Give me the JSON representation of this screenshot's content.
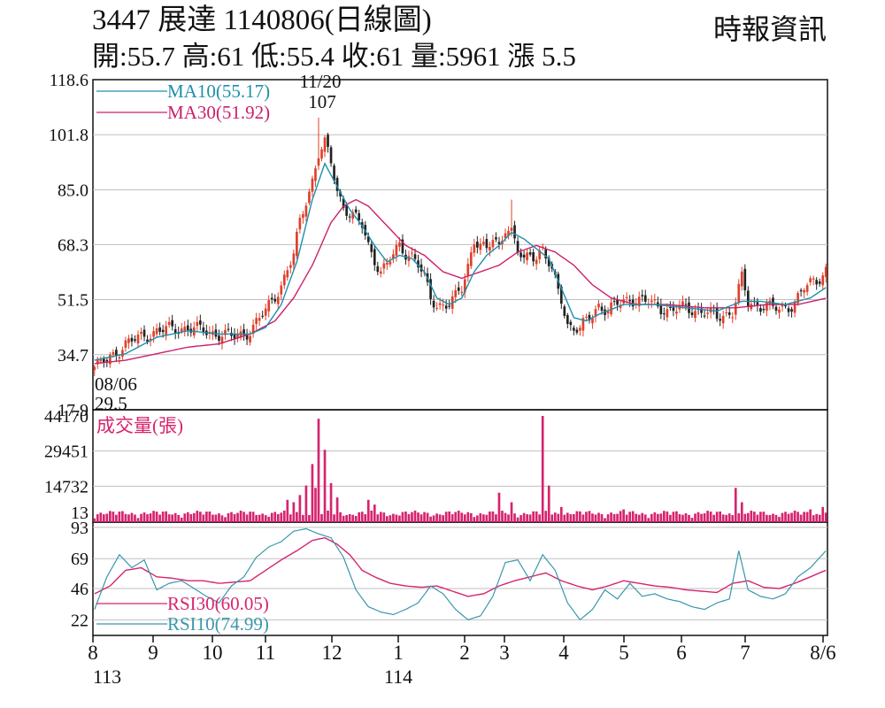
{
  "header": {
    "title": "3447  展達 1140806(日線圖)",
    "ohlc_line": "開:55.7 高:61 低:55.4 收:61 量:5961 漲 5.5",
    "source": "時報資訊"
  },
  "colors": {
    "ma10": "#1e8fad",
    "ma30": "#cc1f6a",
    "volume": "#d6246e",
    "rsi30": "#d6246e",
    "rsi10": "#3a97ad",
    "up": "#e0402a",
    "down": "#222222",
    "grid": "#bfbfbf"
  },
  "chart_data": [
    {
      "type": "candlestick",
      "panel": "price",
      "y_ticks": [
        "118.6",
        "101.8",
        "85.0",
        "68.3",
        "51.5",
        "34.7",
        "17.9"
      ],
      "ylim": [
        17.9,
        118.6
      ],
      "grid": true,
      "legend": [
        {
          "label": "MA10(55.17)",
          "color": "#1e8fad"
        },
        {
          "label": "MA30(51.92)",
          "color": "#cc1f6a"
        }
      ],
      "annotations": [
        {
          "label": "11/20",
          "value": "107"
        },
        {
          "label": "08/06",
          "value": "29.5"
        }
      ],
      "x_months": [
        "8",
        "9",
        "10",
        "11",
        "12",
        "1",
        "2",
        "3",
        "4",
        "5",
        "6",
        "7",
        "8/6"
      ],
      "x_years": [
        "113",
        "114"
      ],
      "close_anchors": [
        [
          0,
          31
        ],
        [
          4,
          33
        ],
        [
          10,
          38
        ],
        [
          20,
          42
        ],
        [
          30,
          43
        ],
        [
          40,
          41
        ],
        [
          45,
          40
        ],
        [
          50,
          42
        ],
        [
          55,
          48
        ],
        [
          60,
          56
        ],
        [
          64,
          65
        ],
        [
          66,
          75
        ],
        [
          68,
          82
        ],
        [
          70,
          88
        ],
        [
          72,
          96
        ],
        [
          74,
          99
        ],
        [
          76,
          93
        ],
        [
          78,
          85
        ],
        [
          80,
          80
        ],
        [
          82,
          78
        ],
        [
          84,
          76
        ],
        [
          86,
          74
        ],
        [
          88,
          68
        ],
        [
          90,
          64
        ],
        [
          92,
          60
        ],
        [
          94,
          62
        ],
        [
          96,
          65
        ],
        [
          98,
          68
        ],
        [
          100,
          66
        ],
        [
          102,
          65
        ],
        [
          104,
          62
        ],
        [
          106,
          58
        ],
        [
          108,
          52
        ],
        [
          110,
          50
        ],
        [
          112,
          50
        ],
        [
          114,
          50
        ],
        [
          116,
          52
        ],
        [
          118,
          55
        ],
        [
          120,
          62
        ],
        [
          122,
          70
        ],
        [
          124,
          68
        ],
        [
          126,
          66
        ],
        [
          128,
          70
        ],
        [
          130,
          68
        ],
        [
          132,
          74
        ],
        [
          134,
          72
        ],
        [
          136,
          66
        ],
        [
          138,
          63
        ],
        [
          140,
          66
        ],
        [
          142,
          65
        ],
        [
          144,
          67
        ],
        [
          146,
          62
        ],
        [
          148,
          57
        ],
        [
          150,
          52
        ],
        [
          152,
          44
        ],
        [
          154,
          43
        ],
        [
          156,
          42
        ],
        [
          158,
          45
        ],
        [
          160,
          47
        ],
        [
          162,
          50
        ],
        [
          165,
          48
        ],
        [
          168,
          50
        ],
        [
          172,
          52
        ],
        [
          176,
          51
        ],
        [
          180,
          50
        ],
        [
          185,
          48
        ],
        [
          190,
          49
        ],
        [
          195,
          48
        ],
        [
          200,
          46
        ],
        [
          205,
          48
        ],
        [
          208,
          58
        ],
        [
          210,
          50
        ],
        [
          213,
          50
        ],
        [
          216,
          50
        ],
        [
          220,
          48
        ],
        [
          224,
          50
        ],
        [
          228,
          55
        ],
        [
          232,
          57
        ],
        [
          235,
          61
        ]
      ],
      "high_spikes": [
        [
          72,
          107
        ],
        [
          134,
          82
        ]
      ],
      "ma10_anchors": [
        [
          0,
          33
        ],
        [
          10,
          35
        ],
        [
          20,
          40
        ],
        [
          30,
          42
        ],
        [
          40,
          41
        ],
        [
          50,
          41
        ],
        [
          55,
          43
        ],
        [
          60,
          50
        ],
        [
          65,
          63
        ],
        [
          70,
          82
        ],
        [
          74,
          93
        ],
        [
          78,
          86
        ],
        [
          82,
          79
        ],
        [
          86,
          74
        ],
        [
          90,
          68
        ],
        [
          94,
          63
        ],
        [
          98,
          65
        ],
        [
          102,
          64
        ],
        [
          106,
          60
        ],
        [
          110,
          52
        ],
        [
          114,
          50
        ],
        [
          118,
          52
        ],
        [
          122,
          60
        ],
        [
          126,
          65
        ],
        [
          130,
          68
        ],
        [
          134,
          72
        ],
        [
          138,
          70
        ],
        [
          142,
          67
        ],
        [
          146,
          64
        ],
        [
          150,
          55
        ],
        [
          154,
          46
        ],
        [
          158,
          45
        ],
        [
          162,
          47
        ],
        [
          170,
          50
        ],
        [
          180,
          50
        ],
        [
          190,
          49
        ],
        [
          200,
          48
        ],
        [
          208,
          51
        ],
        [
          214,
          51
        ],
        [
          222,
          50
        ],
        [
          230,
          52
        ],
        [
          235,
          55.17
        ]
      ],
      "ma30_anchors": [
        [
          0,
          32
        ],
        [
          10,
          33
        ],
        [
          20,
          35
        ],
        [
          30,
          37
        ],
        [
          40,
          38
        ],
        [
          50,
          41
        ],
        [
          58,
          45
        ],
        [
          64,
          52
        ],
        [
          70,
          62
        ],
        [
          76,
          75
        ],
        [
          80,
          80
        ],
        [
          84,
          82
        ],
        [
          88,
          80
        ],
        [
          92,
          76
        ],
        [
          96,
          72
        ],
        [
          100,
          68
        ],
        [
          106,
          65
        ],
        [
          112,
          60
        ],
        [
          118,
          58
        ],
        [
          124,
          60
        ],
        [
          130,
          62
        ],
        [
          136,
          66
        ],
        [
          142,
          68
        ],
        [
          148,
          66
        ],
        [
          154,
          62
        ],
        [
          160,
          56
        ],
        [
          166,
          52
        ],
        [
          174,
          50
        ],
        [
          184,
          50
        ],
        [
          196,
          49
        ],
        [
          206,
          49
        ],
        [
          216,
          50
        ],
        [
          226,
          50
        ],
        [
          235,
          51.92
        ]
      ]
    },
    {
      "type": "bar",
      "panel": "volume",
      "label": "成交量(張)",
      "y_ticks": [
        "44170",
        "29451",
        "14732",
        "13"
      ],
      "ylim": [
        13,
        44170
      ],
      "spikes": [
        [
          62,
          9000
        ],
        [
          64,
          8000
        ],
        [
          66,
          11000
        ],
        [
          68,
          15000
        ],
        [
          70,
          24000
        ],
        [
          71,
          14000
        ],
        [
          72,
          43000
        ],
        [
          74,
          30000
        ],
        [
          76,
          16000
        ],
        [
          78,
          10000
        ],
        [
          88,
          9000
        ],
        [
          90,
          7000
        ],
        [
          130,
          12000
        ],
        [
          134,
          8000
        ],
        [
          144,
          44170
        ],
        [
          146,
          15000
        ],
        [
          150,
          6000
        ],
        [
          170,
          5000
        ],
        [
          206,
          14000
        ],
        [
          208,
          8000
        ],
        [
          230,
          5000
        ],
        [
          234,
          6000
        ]
      ]
    },
    {
      "type": "line",
      "panel": "rsi",
      "y_ticks": [
        "93",
        "69",
        "46",
        "22"
      ],
      "ylim": [
        10,
        97
      ],
      "series": [
        {
          "name": "RSI30(60.05)",
          "color": "#d6246e",
          "anchors": [
            [
              0,
              42
            ],
            [
              5,
              48
            ],
            [
              10,
              60
            ],
            [
              15,
              62
            ],
            [
              20,
              55
            ],
            [
              25,
              54
            ],
            [
              30,
              52
            ],
            [
              35,
              52
            ],
            [
              40,
              50
            ],
            [
              45,
              51
            ],
            [
              50,
              52
            ],
            [
              55,
              60
            ],
            [
              60,
              68
            ],
            [
              65,
              75
            ],
            [
              70,
              83
            ],
            [
              74,
              85
            ],
            [
              78,
              80
            ],
            [
              82,
              72
            ],
            [
              86,
              60
            ],
            [
              90,
              55
            ],
            [
              95,
              50
            ],
            [
              100,
              48
            ],
            [
              105,
              47
            ],
            [
              110,
              48
            ],
            [
              115,
              44
            ],
            [
              120,
              40
            ],
            [
              125,
              42
            ],
            [
              130,
              48
            ],
            [
              135,
              52
            ],
            [
              140,
              55
            ],
            [
              145,
              58
            ],
            [
              150,
              52
            ],
            [
              155,
              48
            ],
            [
              160,
              45
            ],
            [
              165,
              48
            ],
            [
              170,
              52
            ],
            [
              175,
              50
            ],
            [
              180,
              48
            ],
            [
              185,
              47
            ],
            [
              190,
              45
            ],
            [
              195,
              44
            ],
            [
              200,
              43
            ],
            [
              205,
              50
            ],
            [
              210,
              52
            ],
            [
              215,
              47
            ],
            [
              220,
              46
            ],
            [
              225,
              50
            ],
            [
              230,
              55
            ],
            [
              235,
              60.05
            ]
          ]
        },
        {
          "name": "RSI10(74.99)",
          "color": "#3a97ad",
          "anchors": [
            [
              0,
              30
            ],
            [
              4,
              55
            ],
            [
              8,
              72
            ],
            [
              12,
              62
            ],
            [
              16,
              68
            ],
            [
              20,
              45
            ],
            [
              24,
              50
            ],
            [
              28,
              52
            ],
            [
              32,
              46
            ],
            [
              36,
              40
            ],
            [
              40,
              35
            ],
            [
              44,
              48
            ],
            [
              48,
              55
            ],
            [
              52,
              70
            ],
            [
              56,
              78
            ],
            [
              60,
              82
            ],
            [
              64,
              90
            ],
            [
              68,
              92
            ],
            [
              72,
              88
            ],
            [
              76,
              85
            ],
            [
              80,
              70
            ],
            [
              84,
              45
            ],
            [
              88,
              32
            ],
            [
              92,
              28
            ],
            [
              96,
              26
            ],
            [
              100,
              30
            ],
            [
              104,
              35
            ],
            [
              108,
              48
            ],
            [
              112,
              42
            ],
            [
              116,
              30
            ],
            [
              120,
              22
            ],
            [
              124,
              25
            ],
            [
              128,
              40
            ],
            [
              132,
              66
            ],
            [
              136,
              68
            ],
            [
              140,
              52
            ],
            [
              144,
              72
            ],
            [
              148,
              60
            ],
            [
              152,
              35
            ],
            [
              156,
              22
            ],
            [
              160,
              30
            ],
            [
              164,
              45
            ],
            [
              168,
              38
            ],
            [
              172,
              50
            ],
            [
              176,
              40
            ],
            [
              180,
              42
            ],
            [
              184,
              38
            ],
            [
              188,
              36
            ],
            [
              192,
              32
            ],
            [
              196,
              30
            ],
            [
              200,
              35
            ],
            [
              204,
              38
            ],
            [
              207,
              75
            ],
            [
              210,
              45
            ],
            [
              214,
              40
            ],
            [
              218,
              38
            ],
            [
              222,
              42
            ],
            [
              226,
              55
            ],
            [
              230,
              62
            ],
            [
              235,
              74.99
            ]
          ]
        }
      ]
    }
  ]
}
